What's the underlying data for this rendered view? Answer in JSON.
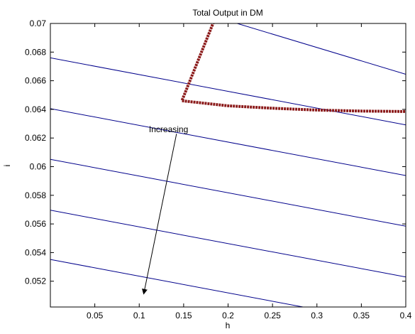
{
  "chart_data": {
    "type": "line",
    "title": "Total Output in DM",
    "xlabel": "h",
    "ylabel": "i",
    "xlim": [
      0,
      0.4
    ],
    "ylim": [
      0.0502,
      0.07
    ],
    "x_ticks": [
      0.05,
      0.1,
      0.15,
      0.2,
      0.25,
      0.3,
      0.35,
      0.4
    ],
    "y_ticks": [
      0.052,
      0.054,
      0.056,
      0.058,
      0.06,
      0.062,
      0.064,
      0.066,
      0.068,
      0.07
    ],
    "grid": false,
    "colors": {
      "contour": "#00008b",
      "path": "#8b1a1a",
      "axes": "#000000"
    },
    "contours": [
      {
        "x": [
          0.0,
          0.4
        ],
        "y": [
          0.07393,
          0.06645
        ]
      },
      {
        "x": [
          0.0,
          0.4
        ],
        "y": [
          0.0676,
          0.06292
        ]
      },
      {
        "x": [
          0.0,
          0.4
        ],
        "y": [
          0.06405,
          0.05938
        ]
      },
      {
        "x": [
          0.0,
          0.4
        ],
        "y": [
          0.06051,
          0.05584
        ]
      },
      {
        "x": [
          0.0,
          0.4
        ],
        "y": [
          0.05696,
          0.0523
        ]
      },
      {
        "x": [
          0.0,
          0.4
        ],
        "y": [
          0.05352,
          0.04885
        ]
      }
    ],
    "path": {
      "x": [
        0.185,
        0.148,
        0.2,
        0.25,
        0.3,
        0.35,
        0.4
      ],
      "y": [
        0.0703,
        0.0646,
        0.06425,
        0.06408,
        0.06395,
        0.06388,
        0.06385
      ]
    },
    "annotation": {
      "text": "Increasing",
      "text_at": [
        0.133,
        0.0624
      ],
      "arrow_from": [
        0.142,
        0.0623
      ],
      "arrow_to": [
        0.105,
        0.0511
      ]
    }
  }
}
